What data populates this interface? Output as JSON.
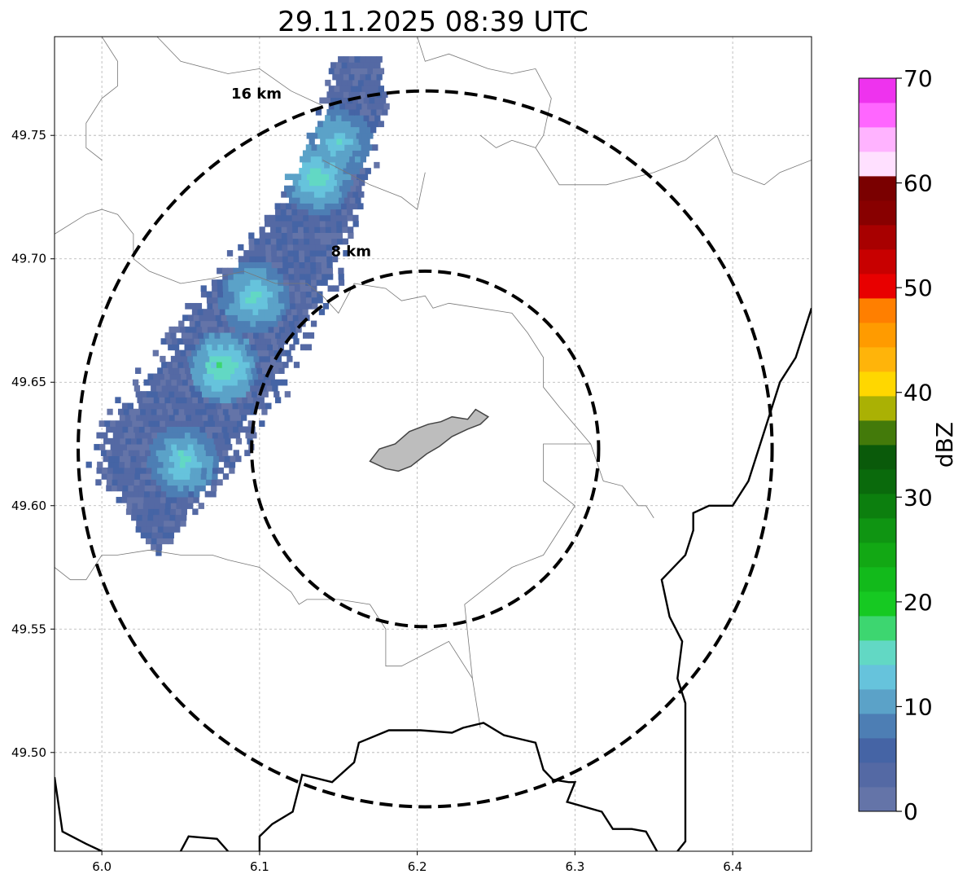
{
  "chart_data": {
    "type": "radar-reflectivity-map",
    "title": "29.11.2025 08:39 UTC",
    "xlim": [
      5.97,
      6.45
    ],
    "ylim": [
      49.46,
      49.79
    ],
    "x_ticks": [
      {
        "value": 6.0,
        "label": "6.0"
      },
      {
        "value": 6.1,
        "label": "6.1"
      },
      {
        "value": 6.2,
        "label": "6.2"
      },
      {
        "value": 6.3,
        "label": "6.3"
      },
      {
        "value": 6.4,
        "label": "6.4"
      }
    ],
    "y_ticks": [
      {
        "value": 49.5,
        "label": "49.50"
      },
      {
        "value": 49.55,
        "label": "49.55"
      },
      {
        "value": 49.6,
        "label": "49.60"
      },
      {
        "value": 49.65,
        "label": "49.65"
      },
      {
        "value": 49.7,
        "label": "49.70"
      },
      {
        "value": 49.75,
        "label": "49.75"
      }
    ],
    "grid": true,
    "range_rings": [
      {
        "label": "8 km",
        "center": [
          6.205,
          49.623
        ],
        "rx": 0.11,
        "ry": 0.072,
        "label_at": [
          6.158,
          49.701
        ]
      },
      {
        "label": "16 km",
        "center": [
          6.205,
          49.623
        ],
        "rx": 0.22,
        "ry": 0.145,
        "label_at": [
          6.098,
          49.765
        ]
      }
    ],
    "precip_band": {
      "value_range_dbz": [
        0,
        17
      ],
      "axis": [
        [
          6.038,
          49.618
        ],
        [
          6.098,
          49.68
        ],
        [
          6.135,
          49.72
        ],
        [
          6.155,
          49.752
        ],
        [
          6.162,
          49.782
        ]
      ],
      "half_width": [
        0.045,
        0.04,
        0.025,
        0.02,
        0.014
      ],
      "cores": [
        {
          "center": [
            6.05,
            49.617
          ],
          "dbz": 14
        },
        {
          "center": [
            6.075,
            49.655
          ],
          "dbz": 16
        },
        {
          "center": [
            6.095,
            49.683
          ],
          "dbz": 14
        },
        {
          "center": [
            6.135,
            49.732
          ],
          "dbz": 15
        },
        {
          "center": [
            6.148,
            49.746
          ],
          "dbz": 13
        }
      ]
    },
    "city_polygon": [
      [
        6.17,
        49.618
      ],
      [
        6.176,
        49.623
      ],
      [
        6.186,
        49.625
      ],
      [
        6.195,
        49.63
      ],
      [
        6.207,
        49.633
      ],
      [
        6.215,
        49.634
      ],
      [
        6.222,
        49.636
      ],
      [
        6.232,
        49.635
      ],
      [
        6.237,
        49.639
      ],
      [
        6.245,
        49.636
      ],
      [
        6.24,
        49.633
      ],
      [
        6.232,
        49.631
      ],
      [
        6.222,
        49.628
      ],
      [
        6.214,
        49.624
      ],
      [
        6.206,
        49.621
      ],
      [
        6.196,
        49.616
      ],
      [
        6.188,
        49.614
      ],
      [
        6.18,
        49.615
      ]
    ],
    "boundaries": [
      [
        [
          5.97,
          49.46
        ],
        [
          5.97,
          49.49
        ],
        [
          5.975,
          49.468
        ],
        [
          5.99,
          49.463
        ],
        [
          6.0,
          49.46
        ]
      ],
      [
        [
          6.05,
          49.46
        ],
        [
          6.055,
          49.466
        ],
        [
          6.073,
          49.465
        ],
        [
          6.08,
          49.46
        ]
      ],
      [
        [
          6.1,
          49.46
        ],
        [
          6.1,
          49.466
        ],
        [
          6.108,
          49.471
        ],
        [
          6.121,
          49.476
        ],
        [
          6.127,
          49.491
        ],
        [
          6.146,
          49.488
        ],
        [
          6.16,
          49.496
        ],
        [
          6.163,
          49.504
        ],
        [
          6.182,
          49.509
        ],
        [
          6.202,
          49.509
        ],
        [
          6.222,
          49.508
        ],
        [
          6.229,
          49.51
        ],
        [
          6.242,
          49.512
        ],
        [
          6.255,
          49.507
        ],
        [
          6.275,
          49.504
        ],
        [
          6.28,
          49.493
        ],
        [
          6.286,
          49.489
        ],
        [
          6.296,
          49.488
        ],
        [
          6.3,
          49.488
        ],
        [
          6.295,
          49.48
        ],
        [
          6.317,
          49.476
        ],
        [
          6.324,
          49.469
        ],
        [
          6.336,
          49.469
        ],
        [
          6.345,
          49.468
        ],
        [
          6.352,
          49.46
        ]
      ],
      [
        [
          6.365,
          49.46
        ],
        [
          6.37,
          49.464
        ],
        [
          6.37,
          49.49
        ],
        [
          6.37,
          49.52
        ],
        [
          6.365,
          49.53
        ],
        [
          6.368,
          49.545
        ],
        [
          6.36,
          49.555
        ],
        [
          6.355,
          49.57
        ],
        [
          6.37,
          49.58
        ],
        [
          6.375,
          49.59
        ],
        [
          6.375,
          49.597
        ],
        [
          6.385,
          49.6
        ],
        [
          6.4,
          49.6
        ],
        [
          6.41,
          49.61
        ],
        [
          6.42,
          49.63
        ],
        [
          6.43,
          49.65
        ],
        [
          6.44,
          49.66
        ],
        [
          6.445,
          49.67
        ],
        [
          6.45,
          49.68
        ]
      ]
    ],
    "thin_boundaries": [
      [
        [
          5.97,
          49.71
        ],
        [
          5.99,
          49.718
        ],
        [
          6.0,
          49.72
        ],
        [
          6.01,
          49.718
        ],
        [
          6.02,
          49.71
        ],
        [
          6.02,
          49.7
        ],
        [
          6.03,
          49.695
        ],
        [
          6.05,
          49.69
        ],
        [
          6.07,
          49.692
        ],
        [
          6.09,
          49.695
        ],
        [
          6.11,
          49.69
        ],
        [
          6.13,
          49.69
        ],
        [
          6.14,
          49.685
        ],
        [
          6.15,
          49.678
        ],
        [
          6.16,
          49.69
        ],
        [
          6.18,
          49.688
        ],
        [
          6.19,
          49.683
        ],
        [
          6.205,
          49.685
        ],
        [
          6.21,
          49.68
        ],
        [
          6.22,
          49.682
        ],
        [
          6.24,
          49.68
        ],
        [
          6.26,
          49.678
        ],
        [
          6.27,
          49.67
        ],
        [
          6.28,
          49.66
        ],
        [
          6.28,
          49.648
        ],
        [
          6.29,
          49.64
        ],
        [
          6.31,
          49.625
        ]
      ],
      [
        [
          6.31,
          49.625
        ],
        [
          6.318,
          49.61
        ],
        [
          6.33,
          49.608
        ],
        [
          6.335,
          49.604
        ],
        [
          6.34,
          49.6
        ]
      ],
      [
        [
          5.97,
          49.575
        ],
        [
          5.98,
          49.57
        ],
        [
          5.99,
          49.57
        ],
        [
          6.0,
          49.58
        ],
        [
          6.01,
          49.58
        ],
        [
          6.03,
          49.582
        ],
        [
          6.05,
          49.58
        ],
        [
          6.07,
          49.58
        ],
        [
          6.08,
          49.578
        ],
        [
          6.1,
          49.575
        ],
        [
          6.11,
          49.57
        ],
        [
          6.12,
          49.565
        ],
        [
          6.125,
          49.56
        ],
        [
          6.13,
          49.562
        ],
        [
          6.15,
          49.562
        ],
        [
          6.17,
          49.56
        ],
        [
          6.18,
          49.55
        ],
        [
          6.18,
          49.535
        ],
        [
          6.19,
          49.535
        ],
        [
          6.205,
          49.54
        ],
        [
          6.22,
          49.545
        ],
        [
          6.235,
          49.53
        ],
        [
          6.24,
          49.51
        ]
      ],
      [
        [
          6.235,
          49.53
        ],
        [
          6.23,
          49.56
        ],
        [
          6.25,
          49.57
        ],
        [
          6.26,
          49.575
        ],
        [
          6.28,
          49.58
        ],
        [
          6.29,
          49.59
        ],
        [
          6.3,
          49.6
        ],
        [
          6.29,
          49.605
        ],
        [
          6.28,
          49.61
        ],
        [
          6.28,
          49.625
        ],
        [
          6.31,
          49.625
        ]
      ],
      [
        [
          6.34,
          49.6
        ],
        [
          6.345,
          49.6
        ],
        [
          6.35,
          49.595
        ]
      ],
      [
        [
          6.0,
          49.79
        ],
        [
          6.01,
          49.78
        ],
        [
          6.01,
          49.77
        ],
        [
          6.0,
          49.765
        ],
        [
          5.99,
          49.755
        ],
        [
          5.99,
          49.745
        ],
        [
          6.0,
          49.74
        ]
      ],
      [
        [
          6.035,
          49.79
        ],
        [
          6.05,
          49.78
        ],
        [
          6.08,
          49.775
        ],
        [
          6.1,
          49.777
        ],
        [
          6.12,
          49.768
        ],
        [
          6.14,
          49.762
        ]
      ],
      [
        [
          6.2,
          49.79
        ],
        [
          6.205,
          49.78
        ],
        [
          6.22,
          49.783
        ],
        [
          6.245,
          49.777
        ],
        [
          6.26,
          49.775
        ],
        [
          6.275,
          49.777
        ],
        [
          6.285,
          49.765
        ],
        [
          6.28,
          49.75
        ],
        [
          6.275,
          49.745
        ]
      ],
      [
        [
          6.275,
          49.745
        ],
        [
          6.29,
          49.73
        ],
        [
          6.32,
          49.73
        ],
        [
          6.35,
          49.735
        ],
        [
          6.37,
          49.74
        ],
        [
          6.38,
          49.745
        ],
        [
          6.39,
          49.75
        ]
      ],
      [
        [
          6.39,
          49.75
        ],
        [
          6.4,
          49.735
        ],
        [
          6.42,
          49.73
        ],
        [
          6.43,
          49.735
        ],
        [
          6.45,
          49.74
        ]
      ],
      [
        [
          6.24,
          49.75
        ],
        [
          6.25,
          49.745
        ],
        [
          6.26,
          49.748
        ],
        [
          6.275,
          49.745
        ]
      ],
      [
        [
          6.14,
          49.74
        ],
        [
          6.17,
          49.73
        ],
        [
          6.19,
          49.725
        ],
        [
          6.2,
          49.72
        ],
        [
          6.205,
          49.735
        ]
      ]
    ],
    "colorbar": {
      "label": "dBZ",
      "min": 0,
      "max": 70,
      "ticks": [
        {
          "value": 0,
          "label": "0"
        },
        {
          "value": 10,
          "label": "10"
        },
        {
          "value": 20,
          "label": "20"
        },
        {
          "value": 30,
          "label": "30"
        },
        {
          "value": 40,
          "label": "40"
        },
        {
          "value": 50,
          "label": "50"
        },
        {
          "value": 60,
          "label": "60"
        },
        {
          "value": 70,
          "label": "70"
        }
      ],
      "colors": [
        "#6474a8",
        "#5469a4",
        "#4564a5",
        "#4d7eb4",
        "#5ba2c8",
        "#66c3dc",
        "#62d8c4",
        "#3dd670",
        "#16c922",
        "#12ba1b",
        "#12a814",
        "#0f9512",
        "#0c7f0e",
        "#0a6a0c",
        "#0a5a0a",
        "#437a0a",
        "#aab104",
        "#ffd700",
        "#ffb40a",
        "#ff9b00",
        "#ff7f00",
        "#e80000",
        "#c80000",
        "#a80000",
        "#880000",
        "#7a0000",
        "#ffe0ff",
        "#ffb3ff",
        "#ff66ff",
        "#ee33ee"
      ]
    }
  }
}
